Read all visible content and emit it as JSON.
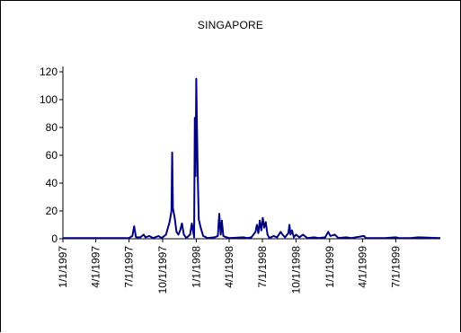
{
  "chart_data": {
    "type": "line",
    "title": "SINGAPORE",
    "xlabel": "",
    "ylabel": "",
    "ylim": [
      0,
      120
    ],
    "yticks": [
      0,
      20,
      40,
      60,
      80,
      100,
      120
    ],
    "xlim": [
      "1997-01-01",
      "1999-10-31"
    ],
    "xtick_labels": [
      "1/1/1997",
      "4/1/1997",
      "7/1/1997",
      "10/1/1997",
      "1/1/1998",
      "4/1/1998",
      "7/1/1998",
      "10/1/1998",
      "1/1/1999",
      "4/1/1999",
      "7/1/1999"
    ],
    "grid": false,
    "legend": "none",
    "series": [
      {
        "color": "#000080",
        "points": [
          [
            "1997-01-01",
            0.5
          ],
          [
            "1997-07-01",
            0.5
          ],
          [
            "1997-07-10",
            2
          ],
          [
            "1997-07-15",
            9
          ],
          [
            "1997-07-20",
            1
          ],
          [
            "1997-08-01",
            1
          ],
          [
            "1997-08-10",
            3
          ],
          [
            "1997-08-15",
            1
          ],
          [
            "1997-08-25",
            2
          ],
          [
            "1997-09-05",
            0.5
          ],
          [
            "1997-09-20",
            2
          ],
          [
            "1997-09-28",
            0.5
          ],
          [
            "1997-10-10",
            3
          ],
          [
            "1997-10-20",
            12
          ],
          [
            "1997-10-25",
            20
          ],
          [
            "1997-10-27",
            62
          ],
          [
            "1997-10-29",
            22
          ],
          [
            "1997-11-03",
            15
          ],
          [
            "1997-11-08",
            5
          ],
          [
            "1997-11-13",
            3
          ],
          [
            "1997-11-18",
            6
          ],
          [
            "1997-11-23",
            11
          ],
          [
            "1997-11-28",
            3
          ],
          [
            "1997-12-05",
            0.5
          ],
          [
            "1997-12-15",
            3
          ],
          [
            "1997-12-20",
            11
          ],
          [
            "1997-12-26",
            1
          ],
          [
            "1997-12-28",
            87
          ],
          [
            "1997-12-30",
            45
          ],
          [
            "1998-01-01",
            115
          ],
          [
            "1998-01-03",
            80
          ],
          [
            "1998-01-05",
            48
          ],
          [
            "1998-01-08",
            14
          ],
          [
            "1998-01-13",
            8
          ],
          [
            "1998-01-20",
            2
          ],
          [
            "1998-02-01",
            0.5
          ],
          [
            "1998-02-20",
            1
          ],
          [
            "1998-03-01",
            2
          ],
          [
            "1998-03-05",
            18
          ],
          [
            "1998-03-09",
            3
          ],
          [
            "1998-03-12",
            13
          ],
          [
            "1998-03-16",
            2
          ],
          [
            "1998-03-25",
            1
          ],
          [
            "1998-04-01",
            0.5
          ],
          [
            "1998-05-10",
            1
          ],
          [
            "1998-05-20",
            0.5
          ],
          [
            "1998-06-01",
            1
          ],
          [
            "1998-06-12",
            5
          ],
          [
            "1998-06-16",
            10
          ],
          [
            "1998-06-20",
            4
          ],
          [
            "1998-06-24",
            13
          ],
          [
            "1998-06-28",
            6
          ],
          [
            "1998-07-02",
            15
          ],
          [
            "1998-07-06",
            8
          ],
          [
            "1998-07-10",
            12
          ],
          [
            "1998-07-15",
            3
          ],
          [
            "1998-07-20",
            0.5
          ],
          [
            "1998-08-01",
            2
          ],
          [
            "1998-08-10",
            1
          ],
          [
            "1998-08-20",
            5
          ],
          [
            "1998-08-25",
            3
          ],
          [
            "1998-09-01",
            1
          ],
          [
            "1998-09-10",
            4
          ],
          [
            "1998-09-13",
            10
          ],
          [
            "1998-09-16",
            3
          ],
          [
            "1998-09-20",
            6
          ],
          [
            "1998-09-25",
            1
          ],
          [
            "1998-10-01",
            3
          ],
          [
            "1998-10-10",
            1
          ],
          [
            "1998-10-20",
            3
          ],
          [
            "1998-11-01",
            0.5
          ],
          [
            "1998-11-20",
            1
          ],
          [
            "1998-12-01",
            0.5
          ],
          [
            "1998-12-20",
            1
          ],
          [
            "1998-12-28",
            5
          ],
          [
            "1999-01-03",
            2
          ],
          [
            "1999-01-15",
            3
          ],
          [
            "1999-01-25",
            0.5
          ],
          [
            "1999-02-15",
            1
          ],
          [
            "1999-03-01",
            0.5
          ],
          [
            "1999-04-05",
            2
          ],
          [
            "1999-04-10",
            0.5
          ],
          [
            "1999-06-01",
            0.5
          ],
          [
            "1999-07-01",
            1
          ],
          [
            "1999-07-10",
            0.5
          ],
          [
            "1999-08-10",
            0.5
          ],
          [
            "1999-09-01",
            1
          ],
          [
            "1999-10-31",
            0.5
          ]
        ]
      }
    ]
  }
}
